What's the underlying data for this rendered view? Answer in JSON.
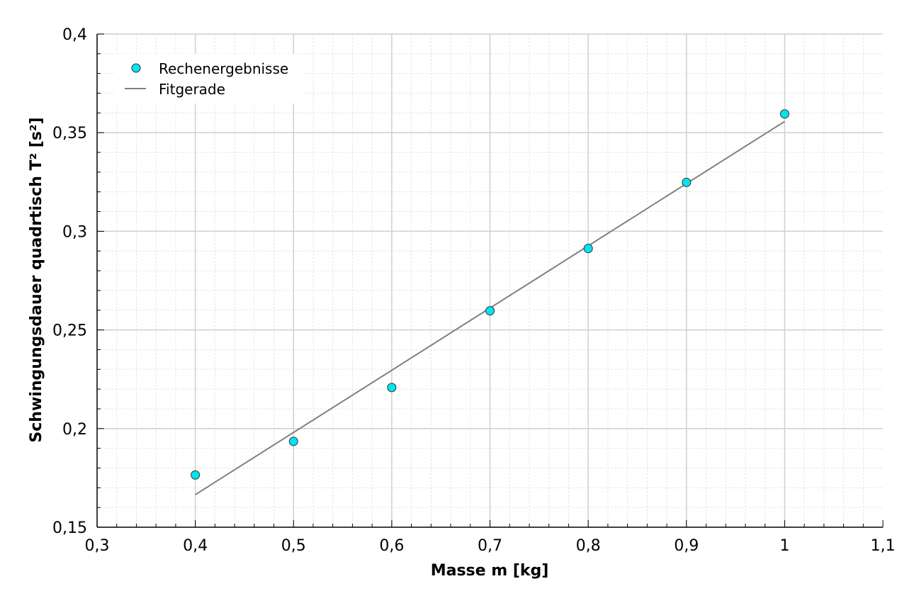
{
  "chart_data": {
    "type": "scatter",
    "xlabel": "Masse m [kg]",
    "ylabel": "Schwingungsdauer quadrtisch T² [s²]",
    "xlim": [
      0.3,
      1.1
    ],
    "ylim": [
      0.15,
      0.4
    ],
    "x_ticks": [
      "0,3",
      "0,4",
      "0,5",
      "0,6",
      "0,7",
      "0,8",
      "0,9",
      "1",
      "1,1"
    ],
    "y_ticks": [
      "0,15",
      "0,2",
      "0,25",
      "0,3",
      "0,35",
      "0,4"
    ],
    "grid": true,
    "legend_position": "top-left",
    "series": [
      {
        "name": "Rechenergebnisse",
        "kind": "points",
        "color": "#00e5ee",
        "points": [
          {
            "x": 0.4,
            "y": 0.1765
          },
          {
            "x": 0.5,
            "y": 0.1935
          },
          {
            "x": 0.6,
            "y": 0.2208
          },
          {
            "x": 0.7,
            "y": 0.2597
          },
          {
            "x": 0.8,
            "y": 0.2913
          },
          {
            "x": 0.9,
            "y": 0.3248
          },
          {
            "x": 1.0,
            "y": 0.3595
          }
        ]
      },
      {
        "name": "Fitgerade",
        "kind": "line",
        "color": "#808080",
        "points": [
          {
            "x": 0.4,
            "y": 0.1665
          },
          {
            "x": 1.0,
            "y": 0.3557
          }
        ]
      }
    ]
  }
}
